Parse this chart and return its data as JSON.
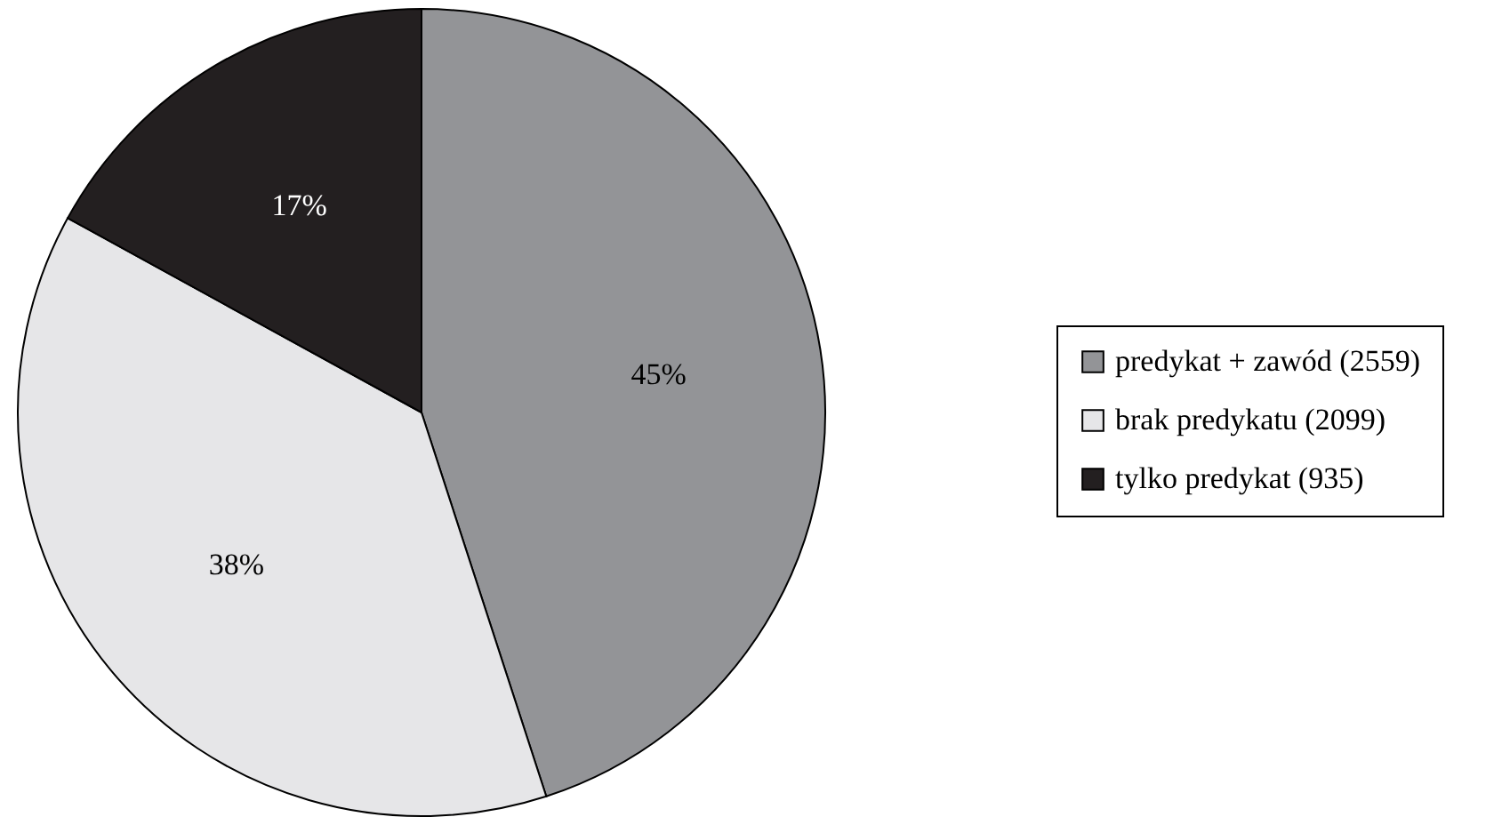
{
  "chart_data": {
    "type": "pie",
    "categories": [
      "predykat + zawód (2559)",
      "brak predykatu (2099)",
      "tylko predykat (935)"
    ],
    "values": [
      45,
      38,
      17
    ],
    "colors": [
      "#939497",
      "#e6e6e8",
      "#231f20"
    ],
    "value_labels": [
      "45%",
      "38%",
      "17%"
    ],
    "legend": "right"
  }
}
